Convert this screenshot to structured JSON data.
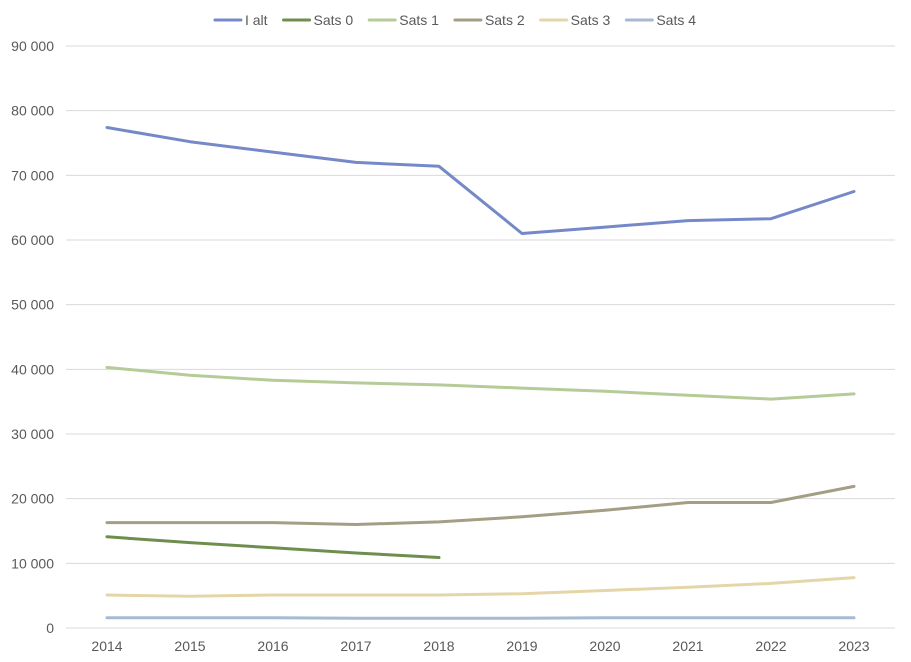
{
  "chart_data": {
    "type": "line",
    "x": [
      "2014",
      "2015",
      "2016",
      "2017",
      "2018",
      "2019",
      "2020",
      "2021",
      "2022",
      "2023"
    ],
    "ylim": [
      0,
      90000
    ],
    "yticks": [
      0,
      10000,
      20000,
      30000,
      40000,
      50000,
      60000,
      70000,
      80000,
      90000
    ],
    "ytick_labels": [
      "0",
      "10 000",
      "20 000",
      "30 000",
      "40 000",
      "50 000",
      "60 000",
      "70 000",
      "80 000",
      "90 000"
    ],
    "grid": true,
    "legend_position": "top",
    "series": [
      {
        "name": "I alt",
        "color": "#7589c8",
        "values": [
          77400,
          75200,
          73600,
          72000,
          71400,
          61000,
          62000,
          63000,
          63300,
          67500
        ]
      },
      {
        "name": "Sats 0",
        "color": "#6e8e4e",
        "values": [
          14100,
          13200,
          12400,
          11600,
          10900,
          null,
          null,
          null,
          null,
          null
        ]
      },
      {
        "name": "Sats 1",
        "color": "#b5cc98",
        "values": [
          40300,
          39100,
          38300,
          37900,
          37600,
          37100,
          36600,
          36000,
          35400,
          36200
        ]
      },
      {
        "name": "Sats 2",
        "color": "#a39e84",
        "values": [
          16300,
          16300,
          16300,
          16000,
          16400,
          17200,
          18200,
          19400,
          19400,
          21900
        ]
      },
      {
        "name": "Sats 3",
        "color": "#e4d6a9",
        "values": [
          5100,
          4900,
          5100,
          5100,
          5100,
          5300,
          5800,
          6300,
          6900,
          7800
        ]
      },
      {
        "name": "Sats 4",
        "color": "#a6bad2",
        "values": [
          1600,
          1600,
          1600,
          1500,
          1500,
          1500,
          1600,
          1600,
          1600,
          1600
        ]
      }
    ]
  }
}
